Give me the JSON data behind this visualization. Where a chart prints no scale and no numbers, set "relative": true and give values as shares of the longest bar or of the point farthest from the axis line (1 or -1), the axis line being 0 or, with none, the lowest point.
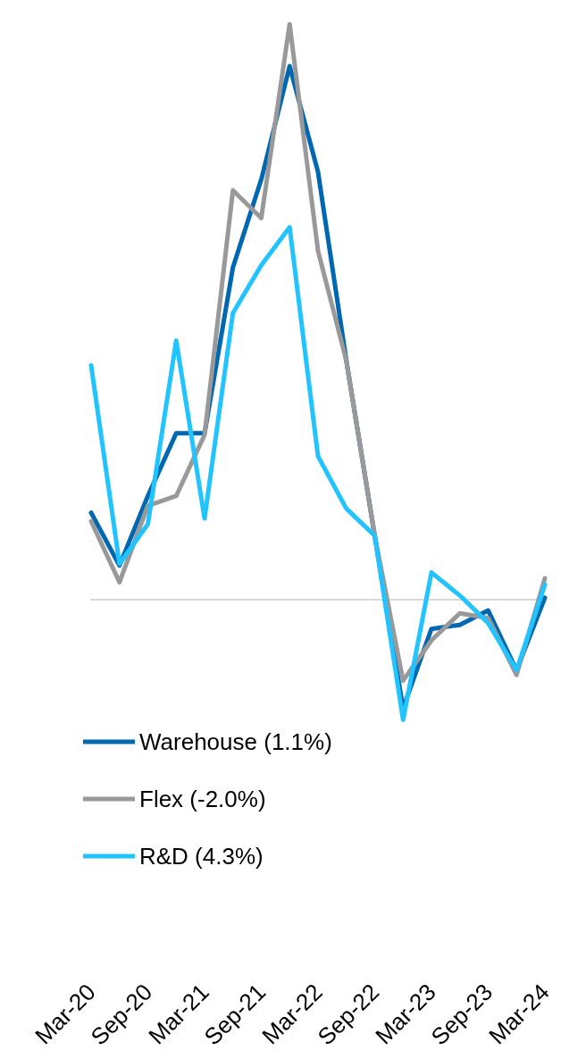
{
  "chart_data": {
    "type": "line",
    "relative": true,
    "grid": false,
    "legend": "bottom left",
    "marker": "none",
    "line_style": "solid",
    "tick_labels": "x",
    "categories": [
      "Mar-20",
      null,
      "Sep-20",
      null,
      "Mar-21",
      null,
      "Sep-21",
      null,
      "Mar-22",
      null,
      "Sep-22",
      null,
      "Mar-23",
      null,
      "Sep-23",
      null,
      "Mar-24"
    ],
    "series": [
      {
        "name": "Warehouse (1.1%)",
        "color": "#0068b0",
        "values": [
          0.151,
          0.059,
          0.18,
          0.289,
          0.289,
          0.577,
          0.73,
          0.927,
          0.743,
          0.415,
          0.111,
          -0.189,
          -0.051,
          -0.044,
          -0.019,
          -0.123,
          0.003
        ]
      },
      {
        "name": "Flex (-2.0%)",
        "color": "#999999",
        "values": [
          0.136,
          0.03,
          0.163,
          0.18,
          0.286,
          0.711,
          0.663,
          1,
          0.606,
          0.415,
          0.111,
          -0.141,
          -0.071,
          -0.024,
          -0.032,
          -0.131,
          0.037
        ]
      },
      {
        "name": "R&D (4.3%)",
        "color": "#22c4ff",
        "values": [
          0.407,
          0.062,
          0.131,
          0.45,
          0.141,
          0.498,
          0.581,
          0.647,
          0.249,
          0.158,
          0.111,
          -0.209,
          0.047,
          0.007,
          -0.041,
          -0.123,
          0.026
        ]
      }
    ]
  }
}
